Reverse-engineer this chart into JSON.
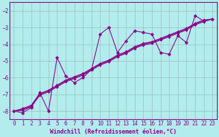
{
  "bg_color": "#b2ecec",
  "grid_color": "#9cbcbc",
  "line_color": "#880088",
  "xlabel": "Windchill (Refroidissement éolien,°C)",
  "xlim": [
    -0.5,
    23.5
  ],
  "ylim": [
    -8.5,
    -1.5
  ],
  "xticks": [
    0,
    1,
    2,
    3,
    4,
    5,
    6,
    7,
    8,
    9,
    10,
    11,
    12,
    13,
    14,
    15,
    16,
    17,
    18,
    19,
    20,
    21,
    22,
    23
  ],
  "yticks": [
    -8,
    -7,
    -6,
    -5,
    -4,
    -3,
    -2
  ],
  "series1_x": [
    0,
    1,
    2,
    3,
    4,
    5,
    6,
    7,
    8,
    9,
    10,
    11,
    12,
    13,
    14,
    15,
    16,
    17,
    18,
    19,
    20,
    21,
    22,
    23
  ],
  "series1_y": [
    -8.0,
    -8.1,
    -7.8,
    -6.9,
    -8.0,
    -4.8,
    -5.9,
    -6.3,
    -6.0,
    -5.5,
    -3.4,
    -3.0,
    -4.5,
    -3.8,
    -3.2,
    -3.3,
    -3.4,
    -4.5,
    -4.6,
    -3.5,
    -3.9,
    -2.3,
    -2.6,
    -2.5
  ],
  "series2_x": [
    0,
    1,
    2,
    3,
    4,
    5,
    6,
    7,
    8,
    9,
    10,
    11,
    12,
    13,
    14,
    15,
    16,
    17,
    18,
    19,
    20,
    21,
    22,
    23
  ],
  "series2_y": [
    -8.0,
    -7.9,
    -7.7,
    -7.0,
    -6.8,
    -6.5,
    -6.2,
    -6.0,
    -5.8,
    -5.5,
    -5.2,
    -5.0,
    -4.7,
    -4.5,
    -4.2,
    -4.0,
    -3.9,
    -3.7,
    -3.5,
    -3.3,
    -3.1,
    -2.8,
    -2.6,
    -2.5
  ],
  "series3_x": [
    0,
    1,
    2,
    3,
    4,
    5,
    6,
    7,
    8,
    9,
    10,
    11,
    12,
    13,
    14,
    15,
    16,
    17,
    18,
    19,
    20,
    21,
    22,
    23
  ],
  "series3_y": [
    -8.0,
    -7.95,
    -7.75,
    -7.05,
    -6.85,
    -6.55,
    -6.25,
    -6.05,
    -5.85,
    -5.55,
    -5.25,
    -5.05,
    -4.75,
    -4.55,
    -4.25,
    -4.05,
    -3.95,
    -3.75,
    -3.55,
    -3.35,
    -3.15,
    -2.85,
    -2.65,
    -2.5
  ],
  "series4_x": [
    0,
    1,
    2,
    3,
    4,
    5,
    6,
    7,
    8,
    9,
    10,
    11,
    12,
    13,
    14,
    15,
    16,
    17,
    18,
    19,
    20,
    21,
    22,
    23
  ],
  "series4_y": [
    -8.0,
    -7.85,
    -7.65,
    -6.95,
    -6.75,
    -6.45,
    -6.15,
    -5.95,
    -5.75,
    -5.45,
    -5.15,
    -4.95,
    -4.65,
    -4.45,
    -4.15,
    -3.95,
    -3.85,
    -3.65,
    -3.45,
    -3.25,
    -3.05,
    -2.75,
    -2.55,
    -2.5
  ]
}
